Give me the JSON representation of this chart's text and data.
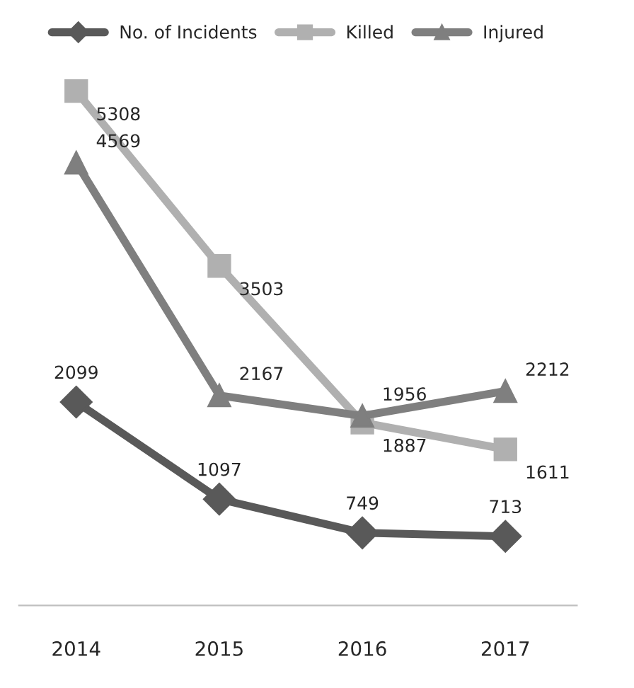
{
  "chart_data": {
    "type": "line",
    "categories": [
      "2014",
      "2015",
      "2016",
      "2017"
    ],
    "series": [
      {
        "name": "No. of Incidents",
        "color": "#595959",
        "values": [
          2099,
          1097,
          749,
          713
        ],
        "marker": "diamond"
      },
      {
        "name": "Killed",
        "color": "#b0b0b0",
        "values": [
          5308,
          3503,
          1887,
          1611
        ],
        "marker": "square"
      },
      {
        "name": "Injured",
        "color": "#7f7f7f",
        "values": [
          4569,
          2167,
          1956,
          2212
        ],
        "marker": "triangle"
      }
    ],
    "data_labels": true,
    "legend": "top",
    "grid": false,
    "line_style": "solid"
  }
}
